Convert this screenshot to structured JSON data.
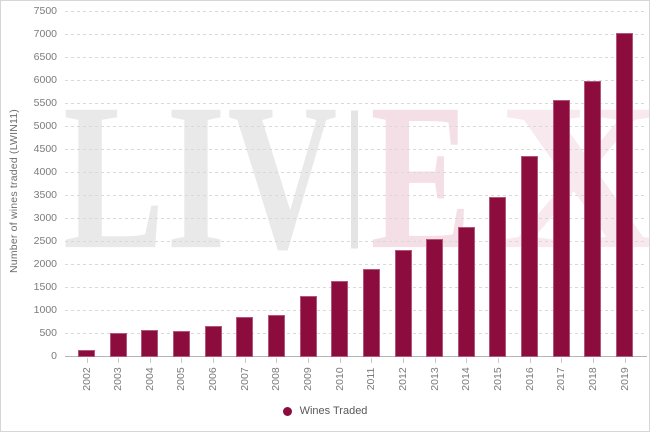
{
  "watermark": {
    "left_text": "LIV",
    "right_text_e": "E",
    "right_text_x": "X",
    "left_color": "#e9e9e9",
    "right_color": "#f4dfe7"
  },
  "legend": {
    "label": "Wines Traded",
    "marker": "circle",
    "marker_color": "#8b0c3d",
    "position": "bottom"
  },
  "colors": {
    "bar": "#8b0c3d",
    "gridline": "#d9d9d9",
    "axis_text": "#7b7b7b"
  },
  "chart_data": {
    "type": "bar",
    "title": "",
    "xlabel": "",
    "ylabel": "Number of wines traded (LWIN11)",
    "categories": [
      "2002",
      "2003",
      "2004",
      "2005",
      "2006",
      "2007",
      "2008",
      "2009",
      "2010",
      "2011",
      "2012",
      "2013",
      "2014",
      "2015",
      "2016",
      "2017",
      "2018",
      "2019"
    ],
    "values": [
      150,
      530,
      590,
      575,
      670,
      860,
      920,
      1320,
      1660,
      1910,
      2320,
      2560,
      2830,
      3470,
      4380,
      5590,
      6000,
      7040
    ],
    "series_name": "Wines Traded",
    "ylim": [
      0,
      7500
    ],
    "yticks": [
      0,
      500,
      1000,
      1500,
      2000,
      2500,
      3000,
      3500,
      4000,
      4500,
      5000,
      5500,
      6000,
      6500,
      7000,
      7500
    ],
    "grid": "horizontal-dashed",
    "legend_position": "bottom-center"
  }
}
